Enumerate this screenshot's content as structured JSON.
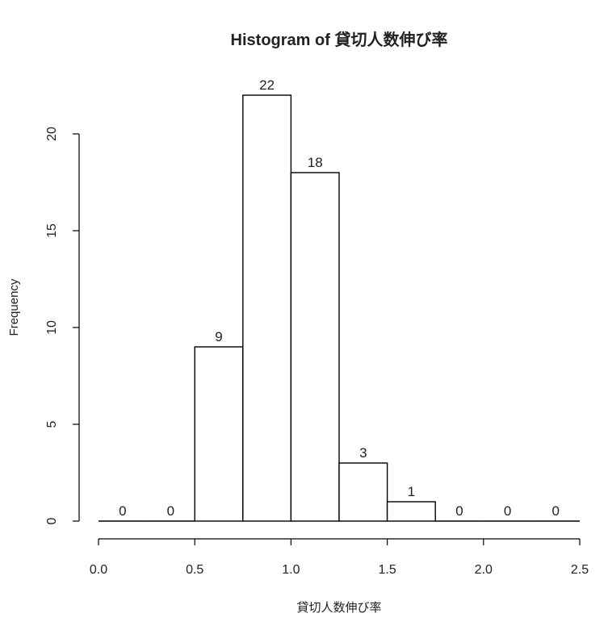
{
  "chart_data": {
    "type": "bar",
    "title": "Histogram of 貸切人数伸び率",
    "xlabel": "貸切人数伸び率",
    "ylabel": "Frequency",
    "bins": [
      {
        "start": 0.0,
        "end": 0.25,
        "count": 0
      },
      {
        "start": 0.25,
        "end": 0.5,
        "count": 0
      },
      {
        "start": 0.5,
        "end": 0.75,
        "count": 9
      },
      {
        "start": 0.75,
        "end": 1.0,
        "count": 22
      },
      {
        "start": 1.0,
        "end": 1.25,
        "count": 18
      },
      {
        "start": 1.25,
        "end": 1.5,
        "count": 3
      },
      {
        "start": 1.5,
        "end": 1.75,
        "count": 1
      },
      {
        "start": 1.75,
        "end": 2.0,
        "count": 0
      },
      {
        "start": 2.0,
        "end": 2.25,
        "count": 0
      },
      {
        "start": 2.25,
        "end": 2.5,
        "count": 0
      }
    ],
    "data_labels": [
      "0",
      "0",
      "9",
      "22",
      "18",
      "3",
      "1",
      "0",
      "0",
      "0"
    ],
    "xlim": [
      0.0,
      2.5
    ],
    "ylim": [
      0,
      22
    ],
    "x_ticks": [
      0.0,
      0.5,
      1.0,
      1.5,
      2.0,
      2.5
    ],
    "x_tick_labels": [
      "0.0",
      "0.5",
      "1.0",
      "1.5",
      "2.0",
      "2.5"
    ],
    "y_ticks": [
      0,
      5,
      10,
      15,
      20
    ],
    "y_tick_labels": [
      "0",
      "5",
      "10",
      "15",
      "20"
    ],
    "grid": false,
    "legend": "none",
    "colors": {
      "bar_fill": "#ffffff",
      "bar_stroke": "#000000",
      "text": "#222222"
    }
  }
}
